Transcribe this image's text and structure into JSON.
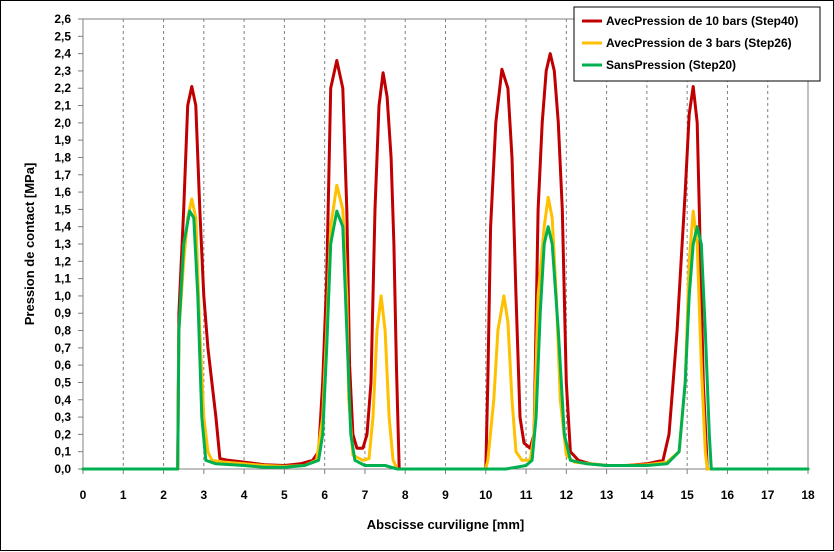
{
  "chart_data": {
    "type": "line",
    "title": "",
    "xlabel": "Abscisse curviligne [mm]",
    "ylabel": "Pression de contact [MPa]",
    "xlim": [
      0,
      18
    ],
    "ylim": [
      0,
      2.6
    ],
    "x_ticks": [
      "0",
      "1",
      "2",
      "3",
      "4",
      "5",
      "6",
      "7",
      "8",
      "9",
      "10",
      "11",
      "12",
      "13",
      "14",
      "15",
      "16",
      "17",
      "18"
    ],
    "y_ticks": [
      "0,0",
      "0,1",
      "0,2",
      "0,3",
      "0,4",
      "0,5",
      "0,6",
      "0,7",
      "0,8",
      "0,9",
      "1,0",
      "1,1",
      "1,2",
      "1,3",
      "1,4",
      "1,5",
      "1,6",
      "1,7",
      "1,8",
      "1,9",
      "2,0",
      "2,1",
      "2,2",
      "2,3",
      "2,4",
      "2,5",
      "2,6"
    ],
    "grid": "vertical",
    "legend_position": "top-right",
    "series": [
      {
        "name": "AvecPression de 10 bars (Step40)",
        "color": "#C00000",
        "points": [
          [
            0,
            0
          ],
          [
            2.35,
            0
          ],
          [
            2.38,
            0.9
          ],
          [
            2.5,
            1.5
          ],
          [
            2.6,
            2.1
          ],
          [
            2.7,
            2.21
          ],
          [
            2.8,
            2.1
          ],
          [
            2.9,
            1.5
          ],
          [
            3.0,
            1.0
          ],
          [
            3.1,
            0.7
          ],
          [
            3.2,
            0.5
          ],
          [
            3.3,
            0.3
          ],
          [
            3.4,
            0.06
          ],
          [
            3.6,
            0.05
          ],
          [
            4.0,
            0.04
          ],
          [
            4.5,
            0.025
          ],
          [
            5.0,
            0.02
          ],
          [
            5.4,
            0.03
          ],
          [
            5.7,
            0.05
          ],
          [
            5.85,
            0.1
          ],
          [
            5.95,
            0.5
          ],
          [
            6.05,
            1.1
          ],
          [
            6.15,
            2.2
          ],
          [
            6.3,
            2.36
          ],
          [
            6.45,
            2.2
          ],
          [
            6.55,
            1.5
          ],
          [
            6.62,
            0.6
          ],
          [
            6.7,
            0.2
          ],
          [
            6.8,
            0.12
          ],
          [
            6.95,
            0.12
          ],
          [
            7.05,
            0.2
          ],
          [
            7.15,
            0.5
          ],
          [
            7.25,
            1.5
          ],
          [
            7.35,
            2.1
          ],
          [
            7.45,
            2.29
          ],
          [
            7.55,
            2.15
          ],
          [
            7.65,
            1.8
          ],
          [
            7.72,
            1.3
          ],
          [
            7.78,
            0.6
          ],
          [
            7.85,
            0
          ],
          [
            8.0,
            0
          ],
          [
            10.0,
            0
          ],
          [
            10.05,
            0.5
          ],
          [
            10.12,
            1.4
          ],
          [
            10.25,
            2.0
          ],
          [
            10.4,
            2.31
          ],
          [
            10.55,
            2.2
          ],
          [
            10.65,
            1.8
          ],
          [
            10.75,
            1.0
          ],
          [
            10.85,
            0.3
          ],
          [
            10.95,
            0.15
          ],
          [
            11.1,
            0.12
          ],
          [
            11.2,
            0.2
          ],
          [
            11.3,
            1.5
          ],
          [
            11.4,
            2.0
          ],
          [
            11.5,
            2.3
          ],
          [
            11.6,
            2.4
          ],
          [
            11.7,
            2.3
          ],
          [
            11.8,
            2.0
          ],
          [
            11.9,
            1.5
          ],
          [
            12.0,
            0.5
          ],
          [
            12.1,
            0.1
          ],
          [
            12.3,
            0.05
          ],
          [
            12.6,
            0.03
          ],
          [
            13.0,
            0.02
          ],
          [
            13.5,
            0.02
          ],
          [
            14.0,
            0.03
          ],
          [
            14.4,
            0.05
          ],
          [
            14.55,
            0.2
          ],
          [
            14.65,
            0.5
          ],
          [
            14.75,
            0.8
          ],
          [
            14.85,
            1.2
          ],
          [
            14.95,
            1.6
          ],
          [
            15.05,
            2.05
          ],
          [
            15.15,
            2.21
          ],
          [
            15.25,
            2.0
          ],
          [
            15.3,
            1.5
          ],
          [
            15.35,
            1.0
          ],
          [
            15.4,
            0.5
          ],
          [
            15.5,
            0
          ],
          [
            18.0,
            0
          ]
        ]
      },
      {
        "name": "AvecPression de 3 bars (Step26)",
        "color": "#FFC000",
        "points": [
          [
            0,
            0
          ],
          [
            2.35,
            0
          ],
          [
            2.38,
            0.8
          ],
          [
            2.5,
            1.2
          ],
          [
            2.6,
            1.45
          ],
          [
            2.7,
            1.56
          ],
          [
            2.8,
            1.45
          ],
          [
            2.9,
            0.8
          ],
          [
            3.0,
            0.3
          ],
          [
            3.1,
            0.1
          ],
          [
            3.2,
            0.05
          ],
          [
            3.5,
            0.04
          ],
          [
            4.0,
            0.03
          ],
          [
            4.5,
            0.02
          ],
          [
            5.0,
            0.015
          ],
          [
            5.5,
            0.02
          ],
          [
            5.8,
            0.05
          ],
          [
            5.95,
            0.3
          ],
          [
            6.05,
            0.8
          ],
          [
            6.15,
            1.4
          ],
          [
            6.3,
            1.64
          ],
          [
            6.45,
            1.5
          ],
          [
            6.55,
            1.0
          ],
          [
            6.6,
            0.4
          ],
          [
            6.7,
            0.08
          ],
          [
            6.95,
            0.05
          ],
          [
            7.1,
            0.06
          ],
          [
            7.2,
            0.3
          ],
          [
            7.3,
            0.8
          ],
          [
            7.4,
            1.0
          ],
          [
            7.5,
            0.8
          ],
          [
            7.6,
            0.3
          ],
          [
            7.7,
            0.05
          ],
          [
            7.8,
            0
          ],
          [
            8.0,
            0
          ],
          [
            10.0,
            0
          ],
          [
            10.05,
            0.05
          ],
          [
            10.2,
            0.4
          ],
          [
            10.3,
            0.8
          ],
          [
            10.45,
            1.0
          ],
          [
            10.55,
            0.85
          ],
          [
            10.65,
            0.4
          ],
          [
            10.75,
            0.1
          ],
          [
            10.9,
            0.05
          ],
          [
            11.1,
            0.05
          ],
          [
            11.2,
            0.2
          ],
          [
            11.3,
            1.0
          ],
          [
            11.45,
            1.4
          ],
          [
            11.55,
            1.57
          ],
          [
            11.65,
            1.45
          ],
          [
            11.75,
            1.0
          ],
          [
            11.85,
            0.4
          ],
          [
            12.0,
            0.08
          ],
          [
            12.2,
            0.04
          ],
          [
            12.6,
            0.03
          ],
          [
            13.0,
            0.02
          ],
          [
            13.5,
            0.02
          ],
          [
            14.0,
            0.025
          ],
          [
            14.5,
            0.04
          ],
          [
            14.8,
            0.1
          ],
          [
            14.95,
            0.5
          ],
          [
            15.05,
            1.2
          ],
          [
            15.15,
            1.49
          ],
          [
            15.25,
            1.3
          ],
          [
            15.35,
            0.6
          ],
          [
            15.45,
            0.1
          ],
          [
            15.5,
            0
          ],
          [
            18.0,
            0
          ]
        ]
      },
      {
        "name": "SansPression (Step20)",
        "color": "#00B050",
        "points": [
          [
            0,
            0
          ],
          [
            2.35,
            0
          ],
          [
            2.38,
            0.8
          ],
          [
            2.5,
            1.3
          ],
          [
            2.65,
            1.49
          ],
          [
            2.75,
            1.45
          ],
          [
            2.85,
            1.0
          ],
          [
            2.95,
            0.3
          ],
          [
            3.05,
            0.05
          ],
          [
            3.3,
            0.03
          ],
          [
            4.0,
            0.02
          ],
          [
            4.5,
            0.01
          ],
          [
            5.0,
            0.01
          ],
          [
            5.5,
            0.02
          ],
          [
            5.85,
            0.05
          ],
          [
            5.95,
            0.2
          ],
          [
            6.05,
            0.7
          ],
          [
            6.15,
            1.3
          ],
          [
            6.3,
            1.49
          ],
          [
            6.45,
            1.4
          ],
          [
            6.55,
            0.8
          ],
          [
            6.65,
            0.2
          ],
          [
            6.75,
            0.05
          ],
          [
            7.0,
            0.02
          ],
          [
            7.5,
            0.02
          ],
          [
            7.8,
            0
          ],
          [
            8.0,
            0
          ],
          [
            10.0,
            0
          ],
          [
            10.5,
            0
          ],
          [
            11.0,
            0.02
          ],
          [
            11.15,
            0.05
          ],
          [
            11.25,
            0.3
          ],
          [
            11.35,
            0.9
          ],
          [
            11.45,
            1.3
          ],
          [
            11.55,
            1.4
          ],
          [
            11.65,
            1.3
          ],
          [
            11.8,
            0.8
          ],
          [
            11.95,
            0.2
          ],
          [
            12.1,
            0.05
          ],
          [
            12.5,
            0.03
          ],
          [
            13.0,
            0.02
          ],
          [
            13.5,
            0.02
          ],
          [
            14.0,
            0.02
          ],
          [
            14.5,
            0.03
          ],
          [
            14.8,
            0.1
          ],
          [
            14.95,
            0.5
          ],
          [
            15.05,
            1.0
          ],
          [
            15.15,
            1.3
          ],
          [
            15.25,
            1.4
          ],
          [
            15.35,
            1.3
          ],
          [
            15.45,
            0.8
          ],
          [
            15.55,
            0.2
          ],
          [
            15.6,
            0
          ],
          [
            18.0,
            0
          ]
        ]
      }
    ]
  }
}
